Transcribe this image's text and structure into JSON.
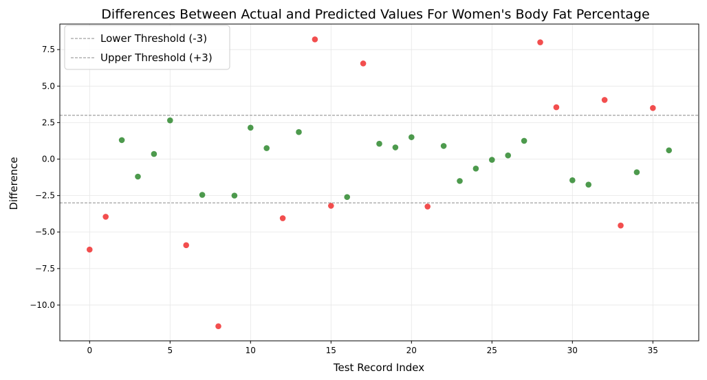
{
  "chart_data": {
    "type": "scatter",
    "title": "Differences Between Actual and Predicted Values For Women's Body Fat Percentage",
    "xlabel": "Test Record Index",
    "ylabel": "Difference",
    "xlim": [
      -1.85,
      37.85
    ],
    "ylim": [
      -12.45,
      9.25
    ],
    "xticks": [
      0,
      5,
      10,
      15,
      20,
      25,
      30,
      35
    ],
    "yticks": [
      -10.0,
      -7.5,
      -5.0,
      -2.5,
      0.0,
      2.5,
      5.0,
      7.5
    ],
    "xtick_labels": [
      "0",
      "5",
      "10",
      "15",
      "20",
      "25",
      "30",
      "35"
    ],
    "ytick_labels": [
      "−10.0",
      "−7.5",
      "−5.0",
      "−2.5",
      "0.0",
      "2.5",
      "5.0",
      "7.5"
    ],
    "grid": true,
    "legend_position": "upper-left",
    "x": [
      0,
      1,
      2,
      3,
      4,
      5,
      6,
      7,
      8,
      9,
      10,
      11,
      12,
      13,
      14,
      15,
      16,
      17,
      18,
      19,
      20,
      21,
      22,
      23,
      24,
      25,
      26,
      27,
      28,
      29,
      30,
      31,
      32,
      33,
      34,
      35,
      36
    ],
    "y": [
      -6.2,
      -3.95,
      1.3,
      -1.2,
      0.35,
      2.65,
      -5.9,
      -2.45,
      -11.45,
      -2.5,
      2.15,
      0.75,
      -4.05,
      1.85,
      8.2,
      -3.2,
      -2.6,
      6.55,
      1.05,
      0.8,
      1.5,
      -3.25,
      0.9,
      -1.5,
      -0.65,
      -0.05,
      0.25,
      1.25,
      8.0,
      3.55,
      -1.45,
      -1.75,
      4.05,
      -4.55,
      -0.9,
      3.5,
      0.6
    ],
    "thresholds": [
      {
        "name": "Lower Threshold (-3)",
        "value": -3,
        "color": "#a0a0a0"
      },
      {
        "name": "Upper Threshold (+3)",
        "value": 3,
        "color": "#a0a0a0"
      }
    ],
    "colors": {
      "outside_threshold": "#ee1c1c",
      "within_threshold": "#1b7d1b",
      "grid": "#e6e6e6"
    }
  }
}
